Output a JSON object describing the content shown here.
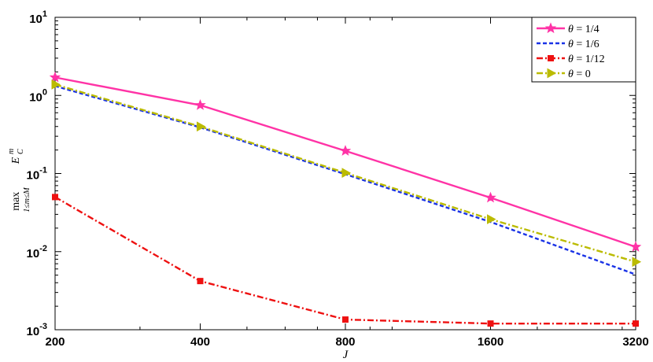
{
  "chart_data": {
    "type": "line",
    "xscale": "log2",
    "yscale": "log10",
    "x": [
      200,
      400,
      800,
      1600,
      3200
    ],
    "xticks": [
      "200",
      "400",
      "800",
      "1600",
      "3200"
    ],
    "xlabel": "J",
    "ylabel": "max E_C^m",
    "ylabel_parts": {
      "op": "max",
      "sub": "1≤m≤M",
      "var": "E",
      "var_sub": "C",
      "var_sup": "m"
    },
    "ylim": [
      0.001,
      10
    ],
    "yticks": [
      {
        "base": "10",
        "exp": "1",
        "value": 10
      },
      {
        "base": "10",
        "exp": "0",
        "value": 1
      },
      {
        "base": "10",
        "exp": "-1",
        "value": 0.1
      },
      {
        "base": "10",
        "exp": "-2",
        "value": 0.01
      },
      {
        "base": "10",
        "exp": "-3",
        "value": 0.001
      }
    ],
    "legend_position": "top-right",
    "grid": false,
    "series": [
      {
        "name": "θ = 1/4",
        "label_var": "θ",
        "label_rest": " = 1/4",
        "color": "#ff33a6",
        "dash": "",
        "marker": "star",
        "values": [
          1.7,
          0.75,
          0.195,
          0.049,
          0.0115
        ]
      },
      {
        "name": "θ = 1/6",
        "label_var": "θ",
        "label_rest": " = 1/6",
        "color": "#1a33e6",
        "dash": "5,3",
        "marker": "none",
        "values": [
          1.32,
          0.39,
          0.098,
          0.024,
          0.0051
        ]
      },
      {
        "name": "θ = 1/12",
        "label_var": "θ",
        "label_rest": " = 1/12",
        "color": "#ee1111",
        "dash": "8,3,2,3",
        "marker": "square",
        "values": [
          0.05,
          0.0042,
          0.00135,
          0.0012,
          0.0012
        ]
      },
      {
        "name": "θ = 0",
        "label_var": "θ",
        "label_rest": " = 0",
        "color": "#bbbb00",
        "dash": "8,3,2,3",
        "marker": "triangle-right",
        "values": [
          1.38,
          0.4,
          0.102,
          0.026,
          0.0074
        ]
      }
    ]
  }
}
